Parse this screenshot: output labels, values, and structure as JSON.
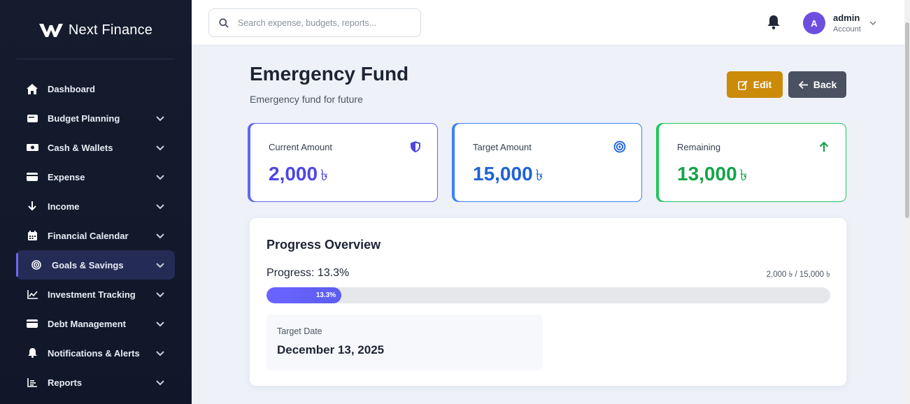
{
  "brand": {
    "name": "Next Finance"
  },
  "sidebar": {
    "items": [
      {
        "label": "Dashboard",
        "icon": "home-icon",
        "has_chevron": false,
        "active": false
      },
      {
        "label": "Budget Planning",
        "icon": "wallet-icon",
        "has_chevron": true,
        "active": false
      },
      {
        "label": "Cash & Wallets",
        "icon": "money-icon",
        "has_chevron": true,
        "active": false
      },
      {
        "label": "Expense",
        "icon": "credit-card-icon",
        "has_chevron": true,
        "active": false
      },
      {
        "label": "Income",
        "icon": "arrow-down-icon",
        "has_chevron": true,
        "active": false
      },
      {
        "label": "Financial Calendar",
        "icon": "calendar-icon",
        "has_chevron": true,
        "active": false
      },
      {
        "label": "Goals & Savings",
        "icon": "target-icon",
        "has_chevron": true,
        "active": true
      },
      {
        "label": "Investment Tracking",
        "icon": "line-chart-icon",
        "has_chevron": true,
        "active": false
      },
      {
        "label": "Debt Management",
        "icon": "credit-card-icon",
        "has_chevron": true,
        "active": false
      },
      {
        "label": "Notifications & Alerts",
        "icon": "bell-icon",
        "has_chevron": true,
        "active": false
      },
      {
        "label": "Reports",
        "icon": "report-icon",
        "has_chevron": true,
        "active": false
      }
    ]
  },
  "topbar": {
    "search_placeholder": "Search expense, budgets, reports...",
    "avatar_initial": "A",
    "user_name": "admin",
    "user_role": "Account"
  },
  "page": {
    "title": "Emergency Fund",
    "subtitle": "Emergency fund for future",
    "edit_label": "Edit",
    "back_label": "Back"
  },
  "stats": {
    "current": {
      "label": "Current Amount",
      "value": "2,000",
      "currency": "৳",
      "icon": "shield-icon",
      "color": "#4f46e5"
    },
    "target": {
      "label": "Target Amount",
      "value": "15,000",
      "currency": "৳",
      "icon": "target-icon",
      "color": "#1e63d6"
    },
    "remaining": {
      "label": "Remaining",
      "value": "13,000",
      "currency": "৳",
      "icon": "arrow-up-icon",
      "color": "#16a34a"
    }
  },
  "progress": {
    "title": "Progress Overview",
    "label": "Progress: 13.3%",
    "amounts": "2,000 ৳ / 15,000 ৳",
    "bar_text": "13.3%",
    "percent": 13.3,
    "target_date_label": "Target Date",
    "target_date": "December 13, 2025"
  },
  "colors": {
    "sidebar_bg": "#141c2e",
    "accent": "#6d66f2",
    "edit_button": "#cc8a09",
    "back_button": "#4a5160"
  }
}
